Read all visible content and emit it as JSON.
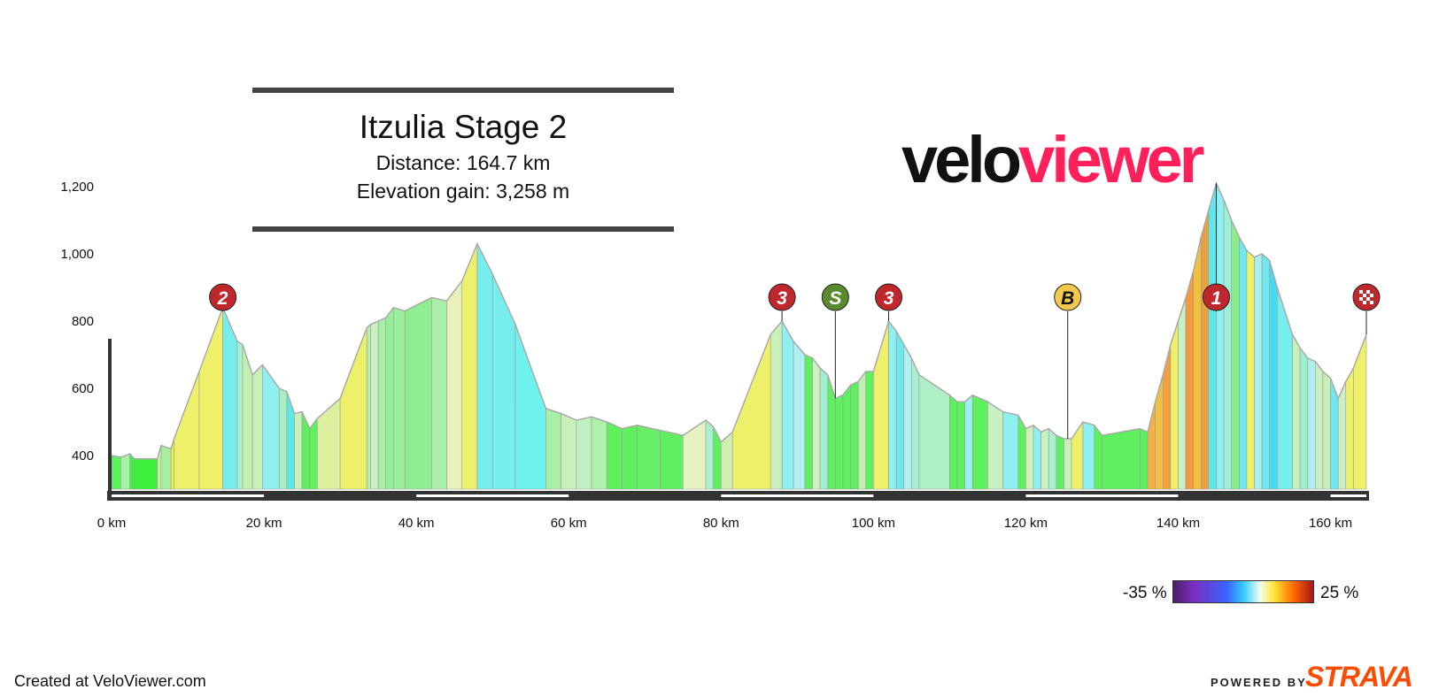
{
  "header": {
    "title": "Itzulia Stage 2",
    "distance": "Distance: 164.7 km",
    "elevation_gain": "Elevation gain: 3,258 m"
  },
  "logo": {
    "part1": "velo",
    "part2": "viewer"
  },
  "footer": {
    "credit": "Created at VeloViewer.com",
    "powered_by": "POWERED BY",
    "brand": "STRAVA"
  },
  "gradient_legend": {
    "min_label": "-35 %",
    "max_label": "25 %"
  },
  "colors": {
    "profile_line": "#aaaaaa",
    "axis": "#333333",
    "climb_marker": "#c0272d",
    "sprint_marker": "#5a8a2e",
    "bonus_marker": "#f2c94c"
  },
  "chart_data": {
    "type": "area",
    "xlabel": "",
    "ylabel": "",
    "x_unit": "km",
    "xlim": [
      0,
      164.7
    ],
    "ylim": [
      300,
      1200
    ],
    "x_ticks": [
      0,
      20,
      40,
      60,
      80,
      100,
      120,
      140,
      160
    ],
    "x_tick_labels": [
      "0 km",
      "20 km",
      "40 km",
      "60 km",
      "80 km",
      "100 km",
      "120 km",
      "140 km",
      "160 km"
    ],
    "y_ticks": [
      400,
      600,
      800,
      1000,
      1200
    ],
    "y_tick_labels": [
      "400",
      "600",
      "800",
      "1,000",
      "1,200"
    ],
    "grid": false,
    "fill": "coloured by gradient",
    "profile": [
      {
        "x": 0,
        "y": 400,
        "color": "#5ef25e"
      },
      {
        "x": 1.2,
        "y": 395,
        "color": "#5ef25e"
      },
      {
        "x": 2.4,
        "y": 405,
        "color": "#a6f2a6"
      },
      {
        "x": 3.0,
        "y": 390,
        "color": "#3ef03e"
      },
      {
        "x": 6.0,
        "y": 390,
        "color": "#3ef03e"
      },
      {
        "x": 6.5,
        "y": 430,
        "color": "#c9f0a2"
      },
      {
        "x": 7.8,
        "y": 420,
        "color": "#a8eea0"
      },
      {
        "x": 8.2,
        "y": 450,
        "color": "#ecf24a"
      },
      {
        "x": 11.5,
        "y": 650,
        "color": "#eef06a"
      },
      {
        "x": 14.6,
        "y": 840,
        "color": "#eef06a"
      },
      {
        "x": 16.5,
        "y": 740,
        "color": "#76ecec"
      },
      {
        "x": 17.2,
        "y": 730,
        "color": "#a8f0d0"
      },
      {
        "x": 18.5,
        "y": 640,
        "color": "#c2f0b0"
      },
      {
        "x": 19.8,
        "y": 670,
        "color": "#c8f0b8"
      },
      {
        "x": 22,
        "y": 600,
        "color": "#8ef0f0"
      },
      {
        "x": 23,
        "y": 590,
        "color": "#a8f0c0"
      },
      {
        "x": 24,
        "y": 525,
        "color": "#5ee8e8"
      },
      {
        "x": 25,
        "y": 530,
        "color": "#c8f0b8"
      },
      {
        "x": 26,
        "y": 480,
        "color": "#5ef05e"
      },
      {
        "x": 27,
        "y": 510,
        "color": "#5ef05e"
      },
      {
        "x": 30,
        "y": 570,
        "color": "#ddf0a0"
      },
      {
        "x": 33.5,
        "y": 780,
        "color": "#eef06a"
      },
      {
        "x": 34,
        "y": 790,
        "color": "#b8eeb0"
      },
      {
        "x": 35,
        "y": 800,
        "color": "#c8f0c0"
      },
      {
        "x": 36,
        "y": 810,
        "color": "#a8f0a8"
      },
      {
        "x": 37,
        "y": 840,
        "color": "#98ee98"
      },
      {
        "x": 38.5,
        "y": 830,
        "color": "#9aef9a"
      },
      {
        "x": 42,
        "y": 870,
        "color": "#90ee90"
      },
      {
        "x": 44,
        "y": 860,
        "color": "#aaf0aa"
      },
      {
        "x": 46,
        "y": 920,
        "color": "#e8f2b8"
      },
      {
        "x": 48,
        "y": 1030,
        "color": "#eef06a"
      },
      {
        "x": 50,
        "y": 940,
        "color": "#76eeee"
      },
      {
        "x": 53,
        "y": 790,
        "color": "#76eeee"
      },
      {
        "x": 57,
        "y": 540,
        "color": "#6ef2ee"
      },
      {
        "x": 59,
        "y": 525,
        "color": "#a8f0a8"
      },
      {
        "x": 61,
        "y": 505,
        "color": "#c8f0b8"
      },
      {
        "x": 63,
        "y": 515,
        "color": "#c0f0c0"
      },
      {
        "x": 65,
        "y": 500,
        "color": "#b0f0a8"
      },
      {
        "x": 67,
        "y": 480,
        "color": "#5ef05e"
      },
      {
        "x": 69,
        "y": 490,
        "color": "#5ef05e"
      },
      {
        "x": 72,
        "y": 475,
        "color": "#66ee66"
      },
      {
        "x": 75,
        "y": 460,
        "color": "#5ef05e"
      },
      {
        "x": 78,
        "y": 505,
        "color": "#e6f2c0"
      },
      {
        "x": 79,
        "y": 485,
        "color": "#a8f0d0"
      },
      {
        "x": 80,
        "y": 440,
        "color": "#5ef05e"
      },
      {
        "x": 81.5,
        "y": 470,
        "color": "#cff0b0"
      },
      {
        "x": 86.5,
        "y": 760,
        "color": "#eef06a"
      },
      {
        "x": 88,
        "y": 800,
        "color": "#c8f0b8"
      },
      {
        "x": 89.5,
        "y": 740,
        "color": "#8ef0f0"
      },
      {
        "x": 91,
        "y": 700,
        "color": "#b0f0f0"
      },
      {
        "x": 92,
        "y": 690,
        "color": "#5ef05e"
      },
      {
        "x": 93,
        "y": 660,
        "color": "#d0f0c0"
      },
      {
        "x": 94,
        "y": 640,
        "color": "#9ef0d0"
      },
      {
        "x": 95,
        "y": 570,
        "color": "#5ef05e"
      },
      {
        "x": 96,
        "y": 580,
        "color": "#5ef05e"
      },
      {
        "x": 97,
        "y": 610,
        "color": "#5ef05e"
      },
      {
        "x": 98,
        "y": 620,
        "color": "#5ef05e"
      },
      {
        "x": 99,
        "y": 650,
        "color": "#c0f0b0"
      },
      {
        "x": 100,
        "y": 650,
        "color": "#5ef05e"
      },
      {
        "x": 102,
        "y": 800,
        "color": "#eef06a"
      },
      {
        "x": 103,
        "y": 770,
        "color": "#8ef0f0"
      },
      {
        "x": 104,
        "y": 730,
        "color": "#6ee8ee"
      },
      {
        "x": 105,
        "y": 690,
        "color": "#b0f0f0"
      },
      {
        "x": 106,
        "y": 640,
        "color": "#a8f0d0"
      },
      {
        "x": 110,
        "y": 580,
        "color": "#b0f0c8"
      },
      {
        "x": 111,
        "y": 560,
        "color": "#5ef05e"
      },
      {
        "x": 112,
        "y": 560,
        "color": "#5ef05e"
      },
      {
        "x": 113,
        "y": 580,
        "color": "#9ef0f0"
      },
      {
        "x": 115,
        "y": 560,
        "color": "#5ef05e"
      },
      {
        "x": 117,
        "y": 530,
        "color": "#c8f0c0"
      },
      {
        "x": 119,
        "y": 520,
        "color": "#8ef0f0"
      },
      {
        "x": 120,
        "y": 480,
        "color": "#5ef05e"
      },
      {
        "x": 121,
        "y": 490,
        "color": "#d0f0c0"
      },
      {
        "x": 122,
        "y": 470,
        "color": "#8ef0f0"
      },
      {
        "x": 123,
        "y": 480,
        "color": "#c8f0c0"
      },
      {
        "x": 124,
        "y": 460,
        "color": "#a8f0d0"
      },
      {
        "x": 125,
        "y": 450,
        "color": "#5ef05e"
      },
      {
        "x": 126,
        "y": 450,
        "color": "#c8f0b8"
      },
      {
        "x": 127.5,
        "y": 500,
        "color": "#eef06a"
      },
      {
        "x": 129,
        "y": 490,
        "color": "#8ef0f0"
      },
      {
        "x": 130,
        "y": 460,
        "color": "#5ef05e"
      },
      {
        "x": 135,
        "y": 480,
        "color": "#5ef05e"
      },
      {
        "x": 136,
        "y": 470,
        "color": "#5ef05e"
      },
      {
        "x": 137,
        "y": 560,
        "color": "#f6b04a"
      },
      {
        "x": 138,
        "y": 640,
        "color": "#f2c040"
      },
      {
        "x": 139,
        "y": 730,
        "color": "#f2a040"
      },
      {
        "x": 140,
        "y": 800,
        "color": "#eef06a"
      },
      {
        "x": 141,
        "y": 870,
        "color": "#c8f0c0"
      },
      {
        "x": 142,
        "y": 950,
        "color": "#f49a3a"
      },
      {
        "x": 143,
        "y": 1050,
        "color": "#f2c040"
      },
      {
        "x": 144,
        "y": 1130,
        "color": "#e8a040"
      },
      {
        "x": 145,
        "y": 1210,
        "color": "#5ee8ee"
      },
      {
        "x": 146,
        "y": 1160,
        "color": "#8ef0f0"
      },
      {
        "x": 147,
        "y": 1100,
        "color": "#9ef0d8"
      },
      {
        "x": 148,
        "y": 1050,
        "color": "#88ee88"
      },
      {
        "x": 149,
        "y": 1010,
        "color": "#6ee8ee"
      },
      {
        "x": 150,
        "y": 990,
        "color": "#eef06a"
      },
      {
        "x": 151,
        "y": 1000,
        "color": "#a8f0f0"
      },
      {
        "x": 152,
        "y": 980,
        "color": "#6ee8ee"
      },
      {
        "x": 153,
        "y": 900,
        "color": "#4ad8ee"
      },
      {
        "x": 155,
        "y": 760,
        "color": "#76eeee"
      },
      {
        "x": 156,
        "y": 720,
        "color": "#c8f0b8"
      },
      {
        "x": 157,
        "y": 690,
        "color": "#9ef0d0"
      },
      {
        "x": 158,
        "y": 680,
        "color": "#b0f0f0"
      },
      {
        "x": 159,
        "y": 650,
        "color": "#c8f0c0"
      },
      {
        "x": 160,
        "y": 630,
        "color": "#c8f0b8"
      },
      {
        "x": 161,
        "y": 570,
        "color": "#6ee8ee"
      },
      {
        "x": 162,
        "y": 620,
        "color": "#c8f0c0"
      },
      {
        "x": 163,
        "y": 660,
        "color": "#eef06a"
      },
      {
        "x": 164.7,
        "y": 760,
        "color": "#eef06a"
      }
    ],
    "markers": [
      {
        "x": 14.6,
        "label": "2",
        "kind": "climb"
      },
      {
        "x": 88,
        "label": "3",
        "kind": "climb"
      },
      {
        "x": 95,
        "label": "S",
        "kind": "sprint"
      },
      {
        "x": 102,
        "label": "3",
        "kind": "climb"
      },
      {
        "x": 125.5,
        "label": "B",
        "kind": "bonus"
      },
      {
        "x": 145,
        "label": "1",
        "kind": "climb"
      },
      {
        "x": 164.7,
        "label": "",
        "kind": "finish"
      }
    ]
  }
}
